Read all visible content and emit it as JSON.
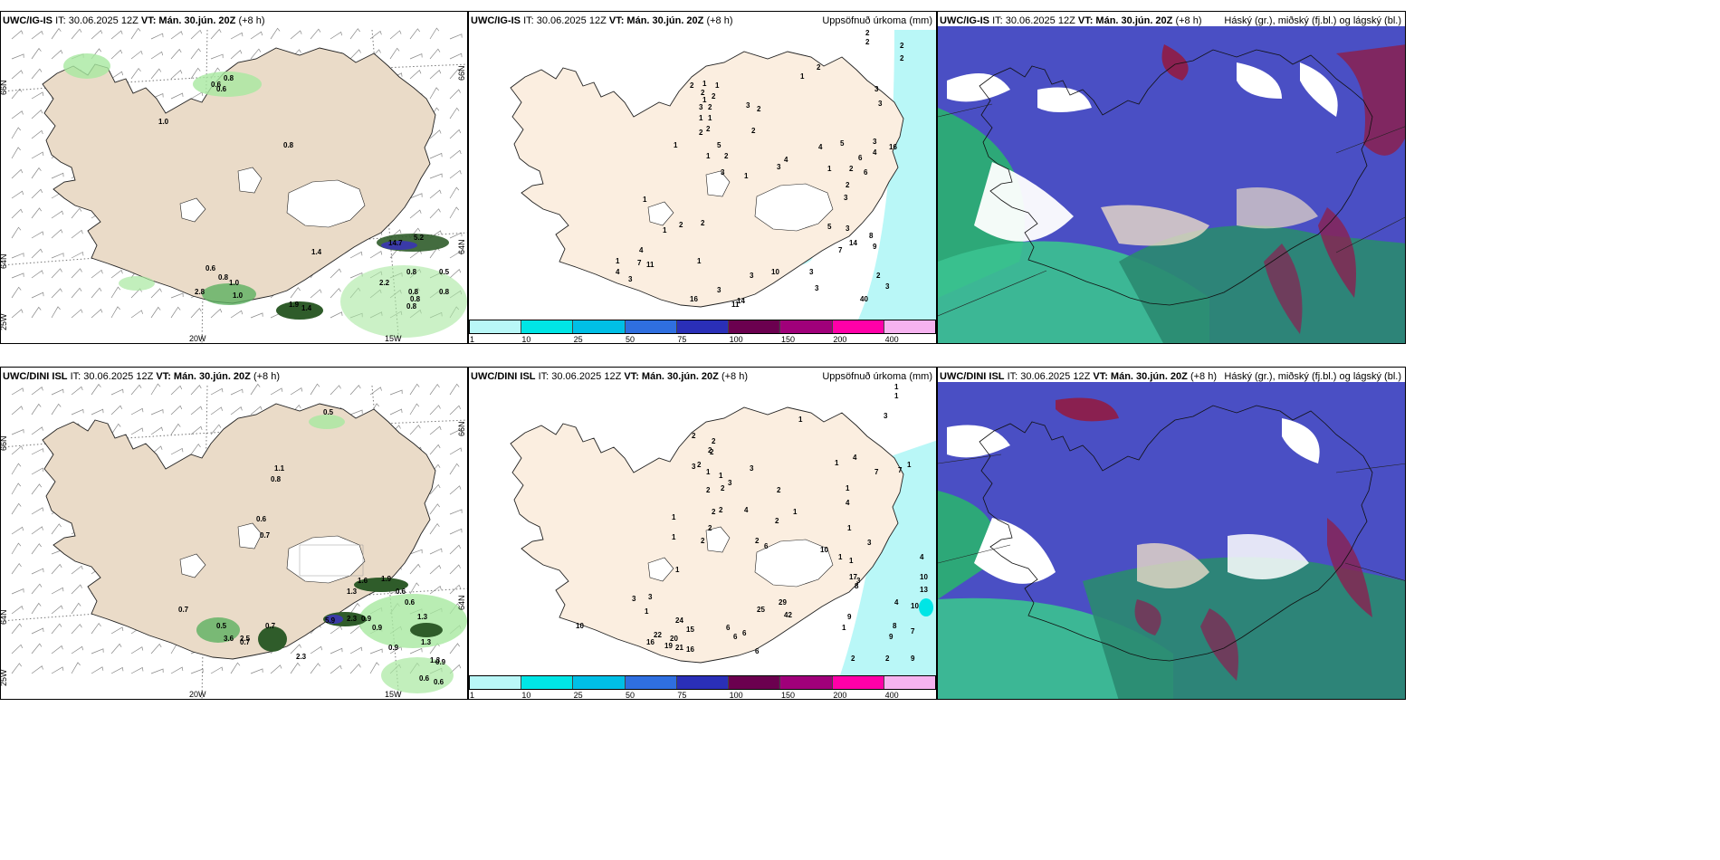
{
  "panels": [
    {
      "id": "p1",
      "model": "UWC/IG-IS",
      "it": "IT: 30.06.2025 12Z",
      "vt": "VT: Mán. 30.jún. 20Z",
      "lead": "(+8 h)",
      "right": ""
    },
    {
      "id": "p2",
      "model": "UWC/IG-IS",
      "it": "IT: 30.06.2025 12Z",
      "vt": "VT: Mán. 30.jún. 20Z",
      "lead": "(+8 h)",
      "right": "Uppsöfnuð úrkoma (mm)"
    },
    {
      "id": "p3",
      "model": "UWC/IG-IS",
      "it": "IT: 30.06.2025 12Z",
      "vt": "VT: Mán. 30.jún. 20Z",
      "lead": "(+8 h)",
      "right": "Háský (gr.), miðský (fj.bl.) og lágský (bl.)"
    },
    {
      "id": "p4",
      "model": "UWC/DINI ISL",
      "it": "IT: 30.06.2025 12Z",
      "vt": "VT: Mán. 30.jún. 20Z",
      "lead": "(+8 h)",
      "right": ""
    },
    {
      "id": "p5",
      "model": "UWC/DINI ISL",
      "it": "IT: 30.06.2025 12Z",
      "vt": "VT: Mán. 30.jún. 20Z",
      "lead": "(+8 h)",
      "right": "Uppsöfnuð úrkoma (mm)"
    },
    {
      "id": "p6",
      "model": "UWC/DINI ISL",
      "it": "IT: 30.06.2025 12Z",
      "vt": "VT: Mán. 30.jún. 20Z",
      "lead": "(+8 h)",
      "right": "Háský (gr.), miðský (fj.bl.) og lágský (bl.)"
    }
  ],
  "axis_labels": {
    "lat66": "66N",
    "lat64": "64N",
    "lat64b": "64N",
    "lat66b": "66N",
    "lon25": "25W",
    "lon20": "20W",
    "lon15": "15W"
  },
  "colorbar": {
    "colors": [
      "#b9f7f7",
      "#00e5e5",
      "#00bfe6",
      "#2f6fe0",
      "#2a2fb8",
      "#6b004f",
      "#a0007a",
      "#ff00a8",
      "#f6b3f0"
    ],
    "ticks": [
      "1",
      "10",
      "25",
      "50",
      "75",
      "100",
      "150",
      "200",
      "400"
    ]
  },
  "precip_top": {
    "values": [
      "2",
      "2",
      "2",
      "2",
      "3",
      "3",
      "2",
      "1",
      "1",
      "2",
      "1",
      "2",
      "1",
      "2",
      "2",
      "3",
      "3",
      "2",
      "1",
      "1",
      "2",
      "2",
      "5",
      "2",
      "1",
      "1",
      "2",
      "3",
      "1",
      "3",
      "4",
      "4",
      "5",
      "3",
      "2",
      "1",
      "2",
      "3",
      "4",
      "6",
      "6",
      "16",
      "4",
      "7",
      "4",
      "11",
      "3",
      "1",
      "2",
      "8",
      "9",
      "14",
      "10",
      "5",
      "3",
      "7",
      "3",
      "2",
      "3",
      "3",
      "40",
      "3",
      "14",
      "11",
      "16",
      "3",
      "1",
      "1",
      "1",
      "2"
    ]
  },
  "precip_bottom": {
    "values": [
      "1",
      "1",
      "1",
      "3",
      "1",
      "2",
      "2",
      "2",
      "2",
      "3",
      "2",
      "1",
      "1",
      "3",
      "2",
      "2",
      "3",
      "2",
      "2",
      "4",
      "2",
      "2",
      "1",
      "1",
      "2",
      "2",
      "2",
      "1",
      "7",
      "1",
      "4",
      "7",
      "1",
      "4",
      "1",
      "3",
      "1",
      "3",
      "6",
      "10",
      "17",
      "8",
      "4",
      "10",
      "10",
      "13",
      "4",
      "8",
      "7",
      "9",
      "2",
      "9",
      "9",
      "1",
      "25",
      "29",
      "42",
      "6",
      "6",
      "6",
      "6",
      "24",
      "20",
      "15",
      "21",
      "16",
      "19",
      "22",
      "16",
      "2",
      "1",
      "3",
      "1",
      "10",
      "3",
      "1"
    ]
  },
  "wind_top_labels": [
    "1.0",
    "0.6",
    "0.6",
    "0.8",
    "0.8",
    "0.6",
    "0.8",
    "1.0",
    "2.8",
    "1.0",
    "1.4",
    "1.9",
    "1.4",
    "14.7",
    "5.2",
    "0.8",
    "0.5",
    "2.2",
    "0.8",
    "0.8",
    "0.8",
    "0.8"
  ],
  "wind_bottom_labels": [
    "0.5",
    "1.1",
    "0.8",
    "0.6",
    "0.7",
    "1.6",
    "1.9",
    "1.3",
    "0.6",
    "0.6",
    "1.3",
    "0.9",
    "2.3",
    "5.9",
    "0.7",
    "0.5",
    "3.6",
    "0.7",
    "2.5",
    "1.3",
    "0.6",
    "0.6",
    "0.9",
    "0.9",
    "1.3",
    "2.3",
    "0.9",
    "0.7"
  ]
}
